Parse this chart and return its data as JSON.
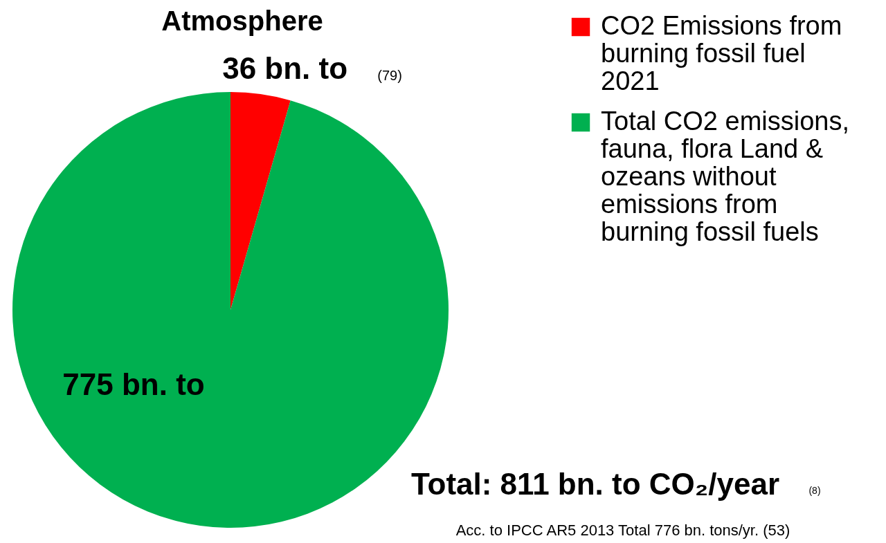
{
  "chart_data": {
    "type": "pie",
    "title": "Atmosphere",
    "categories": [
      "CO2 Emissions from burning fossil fuel 2021",
      "Total CO2 emissions, fauna, flora Land & ozeans without emissions from burning fossil fuels"
    ],
    "values": [
      36,
      775
    ],
    "value_labels": [
      "36 bn. to",
      "775 bn. to"
    ],
    "colors": [
      "#ff0000",
      "#00b050"
    ],
    "legend": "top right",
    "annotations": [
      "(79)",
      "Total: 811 bn. to CO₂/year",
      "(8)",
      "Acc. to IPCC AR5 2013 Total 776 bn. tons/yr. (53)"
    ]
  }
}
